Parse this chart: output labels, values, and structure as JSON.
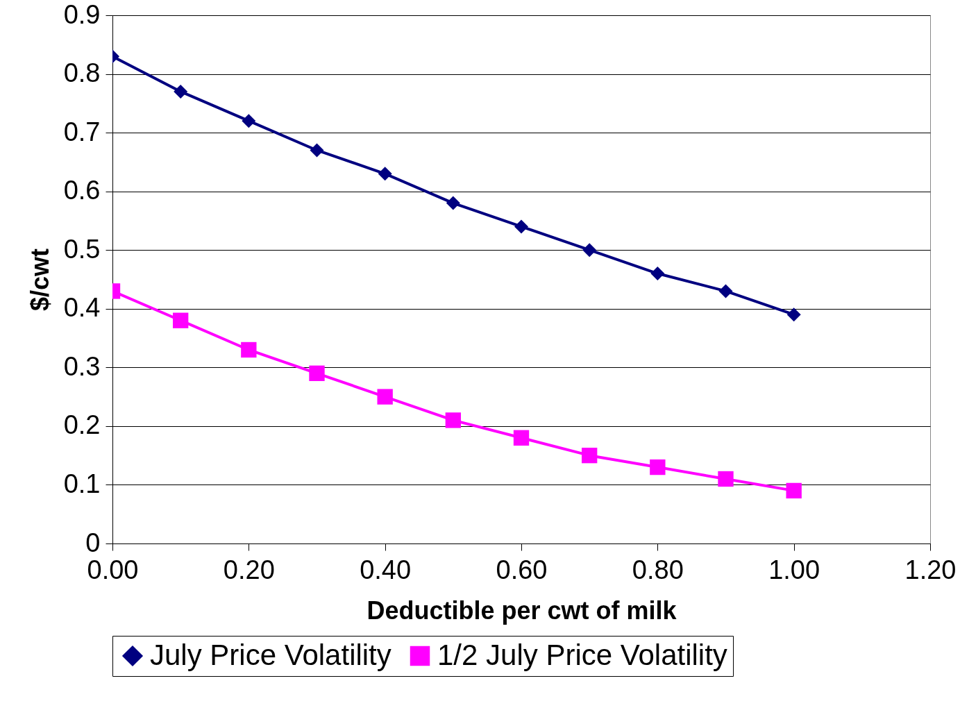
{
  "chart_data": {
    "type": "line",
    "xlabel": "Deductible per cwt of milk",
    "ylabel": "$/cwt",
    "x": [
      0,
      0.1,
      0.2,
      0.3,
      0.4,
      0.5,
      0.6,
      0.7,
      0.8,
      0.9,
      1.0
    ],
    "series": [
      {
        "name": "July Price Volatility",
        "color": "#000080",
        "marker": "diamond",
        "values": [
          0.83,
          0.77,
          0.72,
          0.67,
          0.63,
          0.58,
          0.54,
          0.5,
          0.46,
          0.43,
          0.39
        ]
      },
      {
        "name": "1/2 July Price Volatility",
        "color": "#ff00ff",
        "marker": "square",
        "values": [
          0.43,
          0.38,
          0.33,
          0.29,
          0.25,
          0.21,
          0.18,
          0.15,
          0.13,
          0.11,
          0.09
        ]
      }
    ],
    "xlim": [
      0,
      1.2
    ],
    "xticks": [
      {
        "value": 0,
        "label": "0.00"
      },
      {
        "value": 0.2,
        "label": "0.20"
      },
      {
        "value": 0.4,
        "label": "0.40"
      },
      {
        "value": 0.6,
        "label": "0.60"
      },
      {
        "value": 0.8,
        "label": "0.80"
      },
      {
        "value": 1.0,
        "label": "1.00"
      },
      {
        "value": 1.2,
        "label": "1.20"
      }
    ],
    "ylim": [
      0,
      0.9
    ],
    "yticks": [
      0,
      0.1,
      0.2,
      0.3,
      0.4,
      0.5,
      0.6,
      0.7,
      0.8,
      0.9
    ],
    "grid": "y",
    "legend": "bottom"
  }
}
